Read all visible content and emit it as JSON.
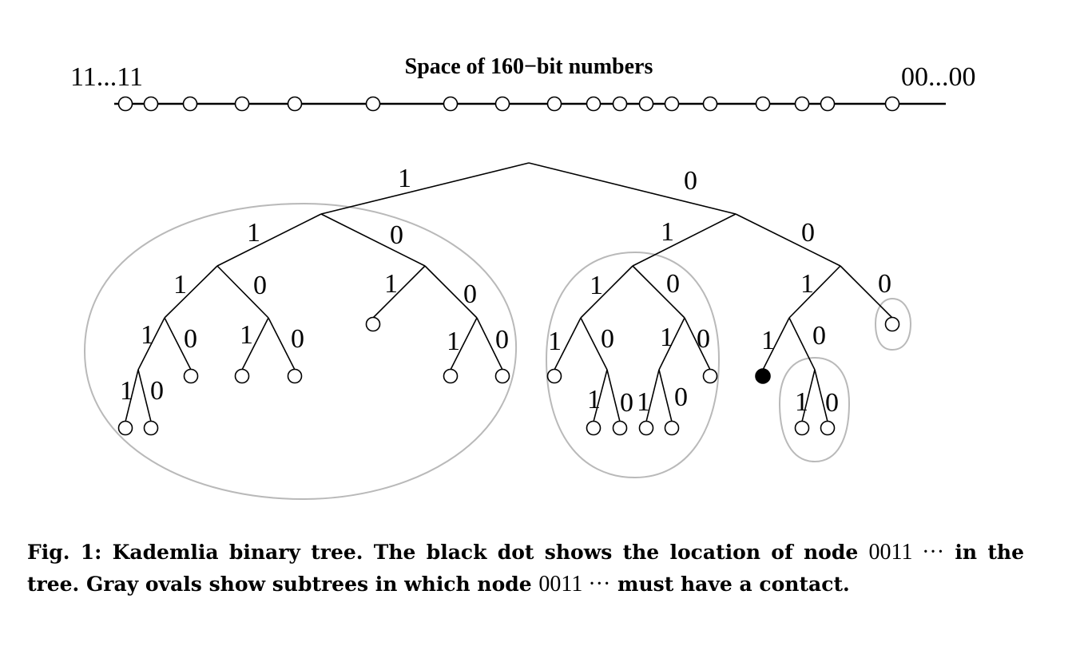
{
  "number_line": {
    "title": "Space of 160−bit numbers",
    "left_label": "11...11",
    "right_label": "00...00"
  },
  "tree": {
    "branch_one": "1",
    "branch_zero": "0",
    "self_node": "0011"
  },
  "caption": {
    "lead": "Fig. 1: Kademlia binary tree. The black dot shows the location of node",
    "node_id_1": "0011 ···",
    "middle": "in the tree. Gray ovals show subtrees in which node",
    "node_id_2": "0011 ···",
    "tail": "must have a contact."
  }
}
